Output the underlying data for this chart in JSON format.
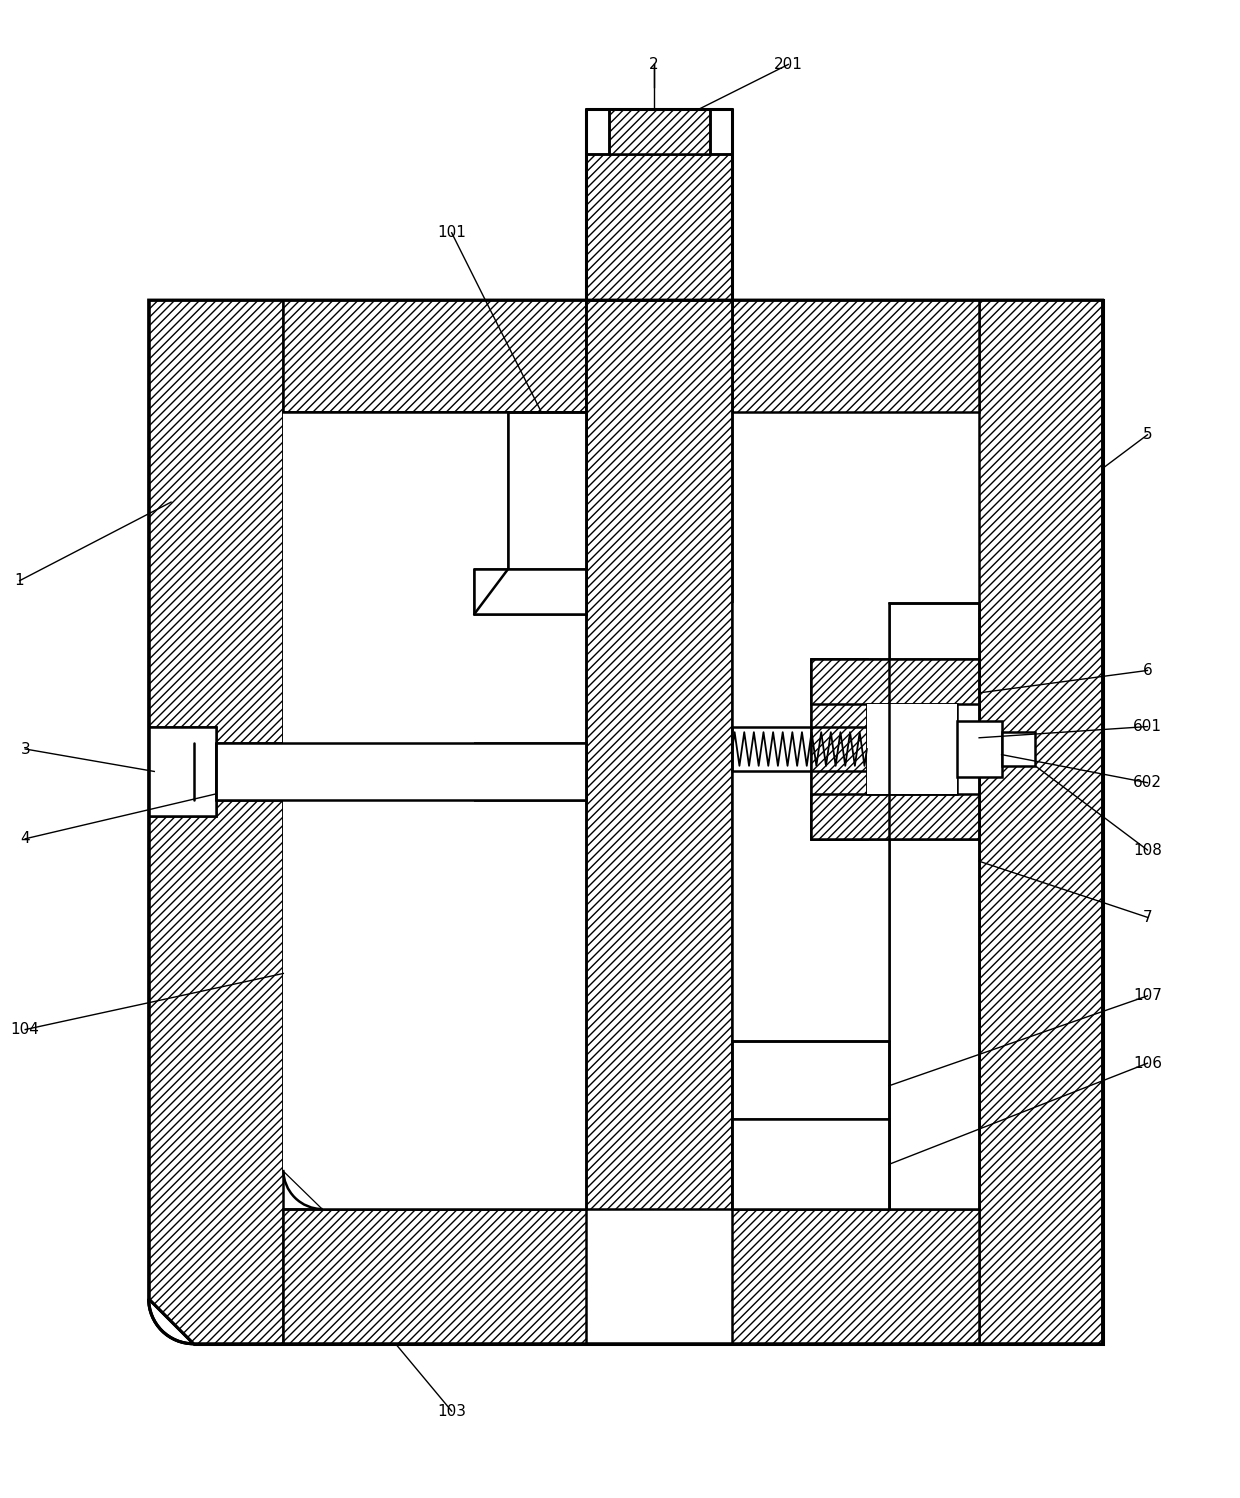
{
  "fig_width": 12.4,
  "fig_height": 14.98,
  "bg_color": "#ffffff",
  "lc": "#000000",
  "lw": 1.8,
  "tlw": 2.2
}
